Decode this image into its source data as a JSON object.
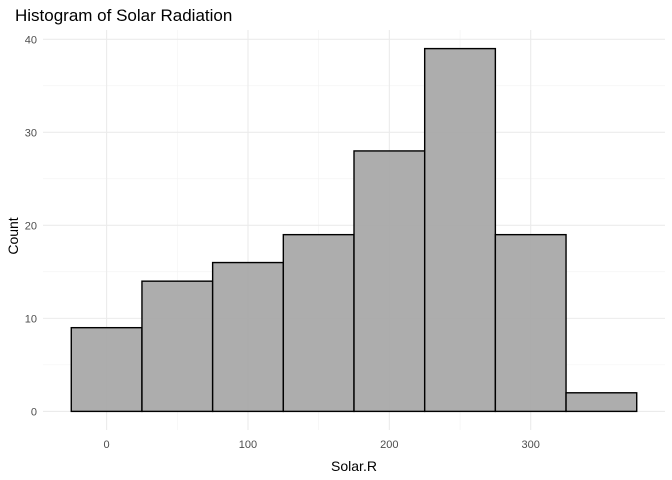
{
  "chart_data": {
    "type": "histogram",
    "title": "Histogram of Solar Radiation",
    "xlabel": "Solar.R",
    "ylabel": "Count",
    "bins": [
      {
        "start": -25,
        "end": 25,
        "count": 9
      },
      {
        "start": 25,
        "end": 75,
        "count": 14
      },
      {
        "start": 75,
        "end": 125,
        "count": 16
      },
      {
        "start": 125,
        "end": 175,
        "count": 19
      },
      {
        "start": 175,
        "end": 225,
        "count": 28
      },
      {
        "start": 225,
        "end": 275,
        "count": 39
      },
      {
        "start": 275,
        "end": 325,
        "count": 19
      },
      {
        "start": 325,
        "end": 375,
        "count": 2
      }
    ],
    "x_ticks": [
      0,
      100,
      200,
      300
    ],
    "y_ticks": [
      0,
      10,
      20,
      30,
      40
    ],
    "xlim": [
      -45,
      395
    ],
    "ylim": [
      -2,
      41
    ],
    "grid": true,
    "bar_color": "#a9a9a9",
    "edge_color": "#000000"
  }
}
